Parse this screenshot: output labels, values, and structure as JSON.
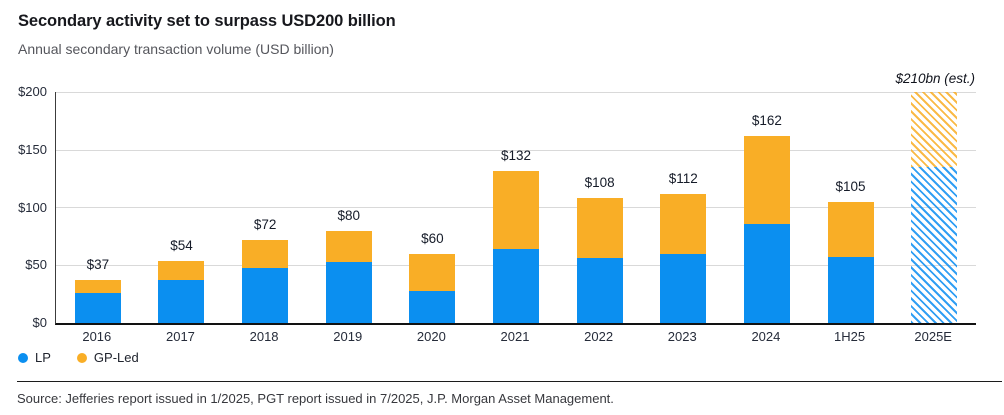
{
  "header": {
    "title": "Secondary activity set to surpass USD200 billion",
    "subtitle": "Annual secondary transaction volume (USD billion)"
  },
  "legend": [
    {
      "label": "LP",
      "color": "#0b8ff0"
    },
    {
      "label": "GP-Led",
      "color": "#f9ae26"
    }
  ],
  "footer": {
    "source": "Source: Jefferies report issued in 1/2025, PGT report issued in 7/2025, J.P. Morgan Asset Management."
  },
  "chart_data": {
    "type": "bar",
    "stacked": true,
    "title": "Secondary activity set to surpass USD200 billion",
    "subtitle": "Annual secondary transaction volume (USD billion)",
    "categories": [
      "2016",
      "2017",
      "2018",
      "2019",
      "2020",
      "2021",
      "2022",
      "2023",
      "2024",
      "1H25",
      "2025E"
    ],
    "series": [
      {
        "name": "LP",
        "color": "#0b8ff0",
        "values": [
          26,
          37,
          48,
          53,
          28,
          64,
          56,
          60,
          86,
          57,
          135
        ]
      },
      {
        "name": "GP-Led",
        "color": "#f9ae26",
        "values": [
          11,
          17,
          24,
          27,
          32,
          68,
          52,
          52,
          76,
          48,
          75
        ]
      }
    ],
    "totals": [
      37,
      54,
      72,
      80,
      60,
      132,
      108,
      112,
      162,
      105,
      210
    ],
    "total_labels": [
      "$37",
      "$54",
      "$72",
      "$80",
      "$60",
      "$132",
      "$108",
      "$112",
      "$162",
      "$105",
      ""
    ],
    "estimate_label": "$210bn (est.)",
    "estimate_index": 10,
    "hatched_indices": [
      10
    ],
    "ylim": [
      0,
      200
    ],
    "ytick_values": [
      0,
      50,
      100,
      150,
      200
    ],
    "ytick_labels": [
      "$0",
      "$50",
      "$100",
      "$150",
      "$200"
    ],
    "grid": true,
    "legend_position": "bottom-left",
    "legend_entries": [
      "LP",
      "GP-Led"
    ]
  }
}
